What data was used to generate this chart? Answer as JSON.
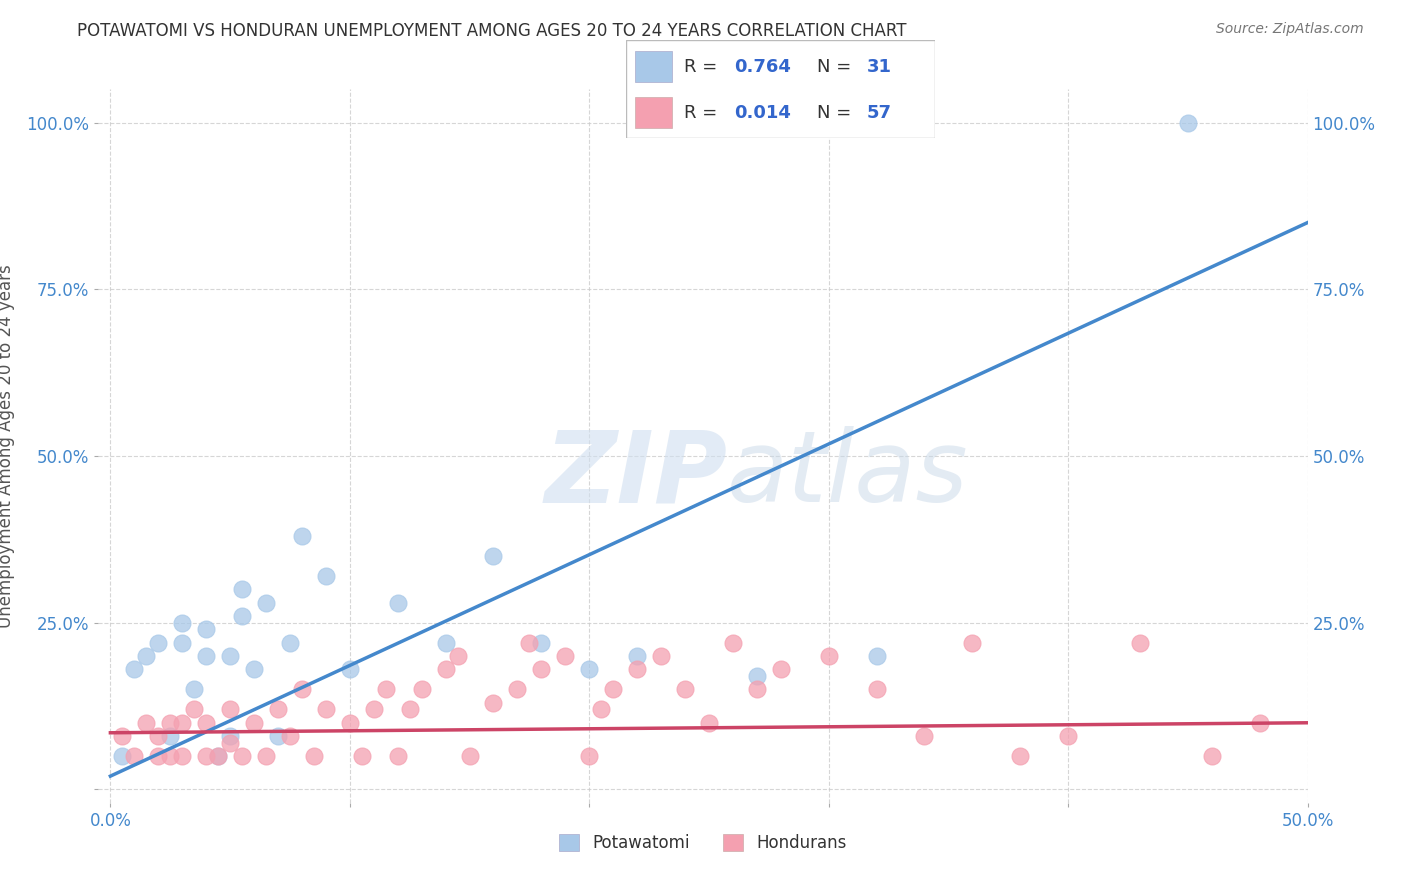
{
  "title": "POTAWATOMI VS HONDURAN UNEMPLOYMENT AMONG AGES 20 TO 24 YEARS CORRELATION CHART",
  "source": "Source: ZipAtlas.com",
  "ylabel": "Unemployment Among Ages 20 to 24 years",
  "xlim": [
    0.0,
    0.5
  ],
  "ylim": [
    0.0,
    1.05
  ],
  "xticks": [
    0.0,
    0.1,
    0.2,
    0.3,
    0.4,
    0.5
  ],
  "xticklabels": [
    "0.0%",
    "",
    "",
    "",
    "",
    "50.0%"
  ],
  "yticks": [
    0.0,
    0.25,
    0.5,
    0.75,
    1.0
  ],
  "yticklabels": [
    "",
    "25.0%",
    "50.0%",
    "75.0%",
    "100.0%"
  ],
  "watermark_zip": "ZIP",
  "watermark_atlas": "atlas",
  "blue_color": "#a8c8e8",
  "pink_color": "#f4a0b0",
  "blue_line_color": "#4488cc",
  "pink_line_color": "#cc4466",
  "tick_color": "#4488cc",
  "grid_color": "#cccccc",
  "legend_text_color": "#333333",
  "legend_val_color": "#3366cc",
  "potawatomi_x": [
    0.005,
    0.01,
    0.015,
    0.02,
    0.025,
    0.03,
    0.03,
    0.035,
    0.04,
    0.04,
    0.045,
    0.05,
    0.05,
    0.055,
    0.055,
    0.06,
    0.065,
    0.07,
    0.075,
    0.08,
    0.09,
    0.1,
    0.12,
    0.14,
    0.16,
    0.18,
    0.2,
    0.22,
    0.27,
    0.32,
    0.45
  ],
  "potawatomi_y": [
    0.05,
    0.18,
    0.2,
    0.22,
    0.08,
    0.25,
    0.22,
    0.15,
    0.2,
    0.24,
    0.05,
    0.08,
    0.2,
    0.26,
    0.3,
    0.18,
    0.28,
    0.08,
    0.22,
    0.38,
    0.32,
    0.18,
    0.28,
    0.22,
    0.35,
    0.22,
    0.18,
    0.2,
    0.17,
    0.2,
    1.0
  ],
  "honduran_x": [
    0.005,
    0.01,
    0.015,
    0.02,
    0.02,
    0.025,
    0.025,
    0.03,
    0.03,
    0.035,
    0.04,
    0.04,
    0.045,
    0.05,
    0.05,
    0.055,
    0.06,
    0.065,
    0.07,
    0.075,
    0.08,
    0.085,
    0.09,
    0.1,
    0.105,
    0.11,
    0.115,
    0.12,
    0.125,
    0.13,
    0.14,
    0.145,
    0.15,
    0.16,
    0.17,
    0.175,
    0.18,
    0.19,
    0.2,
    0.205,
    0.21,
    0.22,
    0.23,
    0.24,
    0.25,
    0.26,
    0.27,
    0.28,
    0.3,
    0.32,
    0.34,
    0.36,
    0.38,
    0.4,
    0.43,
    0.46,
    0.48
  ],
  "honduran_y": [
    0.08,
    0.05,
    0.1,
    0.05,
    0.08,
    0.05,
    0.1,
    0.05,
    0.1,
    0.12,
    0.05,
    0.1,
    0.05,
    0.07,
    0.12,
    0.05,
    0.1,
    0.05,
    0.12,
    0.08,
    0.15,
    0.05,
    0.12,
    0.1,
    0.05,
    0.12,
    0.15,
    0.05,
    0.12,
    0.15,
    0.18,
    0.2,
    0.05,
    0.13,
    0.15,
    0.22,
    0.18,
    0.2,
    0.05,
    0.12,
    0.15,
    0.18,
    0.2,
    0.15,
    0.1,
    0.22,
    0.15,
    0.18,
    0.2,
    0.15,
    0.08,
    0.22,
    0.05,
    0.08,
    0.22,
    0.05,
    0.1
  ],
  "blue_line_x0": 0.0,
  "blue_line_y0": 0.02,
  "blue_line_x1": 0.5,
  "blue_line_y1": 0.85,
  "pink_line_x0": 0.0,
  "pink_line_y0": 0.085,
  "pink_line_x1": 0.5,
  "pink_line_y1": 0.1
}
